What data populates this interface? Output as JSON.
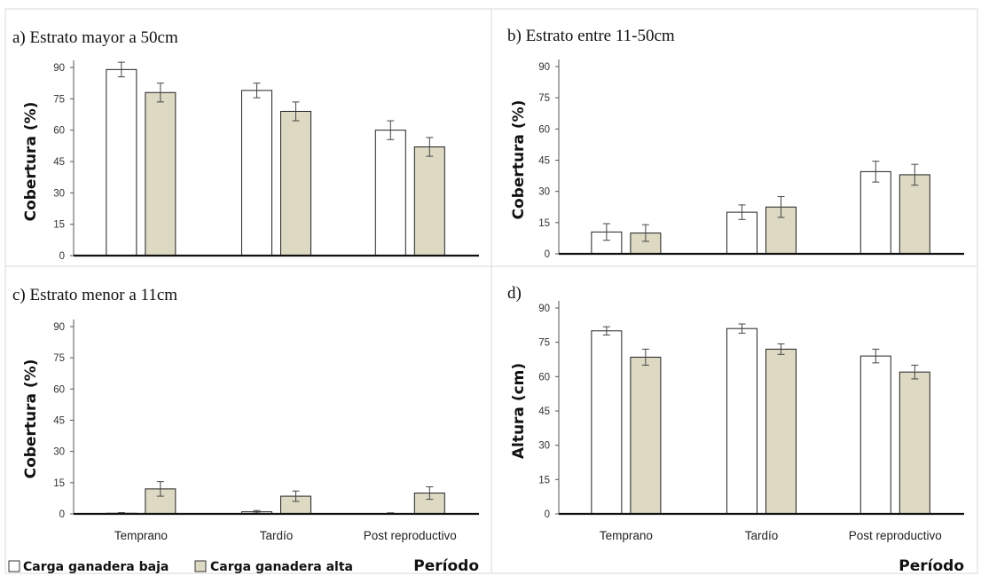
{
  "legend": {
    "items": [
      {
        "label": "Carga ganadera baja",
        "color": "#ffffff"
      },
      {
        "label": "Carga ganadera alta",
        "color": "#ddd9c3"
      }
    ]
  },
  "chart_data": [
    {
      "type": "bar",
      "title": "a) Estrato mayor a 50cm",
      "ylabel": "Cobertura (%)",
      "xlabel": "",
      "categories": [
        "",
        "",
        ""
      ],
      "ylim": [
        0,
        90
      ],
      "yticks": [
        "0",
        "15",
        "30",
        "45",
        "60",
        "75",
        "90"
      ],
      "series": [
        {
          "name": "Carga ganadera baja",
          "color": "#ffffff",
          "values": [
            89,
            79,
            60
          ],
          "errors": [
            3.5,
            3.5,
            4.5
          ]
        },
        {
          "name": "Carga ganadera alta",
          "color": "#ddd9c3",
          "values": [
            78,
            69,
            52
          ],
          "errors": [
            4.5,
            4.5,
            4.5
          ]
        }
      ]
    },
    {
      "type": "bar",
      "title": "b) Estrato entre 11-50cm",
      "ylabel": "Cobertura (%)",
      "xlabel": "",
      "categories": [
        "",
        "",
        ""
      ],
      "ylim": [
        0,
        90
      ],
      "yticks": [
        "0",
        "15",
        "30",
        "45",
        "60",
        "75",
        "90"
      ],
      "series": [
        {
          "name": "Carga ganadera baja",
          "color": "#ffffff",
          "values": [
            10.5,
            20,
            39.5
          ],
          "errors": [
            4,
            3.5,
            5
          ]
        },
        {
          "name": "Carga ganadera alta",
          "color": "#ddd9c3",
          "values": [
            10,
            22.5,
            38
          ],
          "errors": [
            4,
            5,
            5
          ]
        }
      ]
    },
    {
      "type": "bar",
      "title": "c) Estrato menor a 11cm",
      "ylabel": "Cobertura (%)",
      "xlabel": "Período",
      "categories": [
        "Temprano",
        "Tardío",
        "Post reproductivo"
      ],
      "ylim": [
        0,
        90
      ],
      "yticks": [
        "0",
        "15",
        "30",
        "45",
        "60",
        "75",
        "90"
      ],
      "series": [
        {
          "name": "Carga ganadera baja",
          "color": "#ffffff",
          "values": [
            0.3,
            1,
            0.2
          ],
          "errors": [
            0.3,
            0.6,
            0.3
          ]
        },
        {
          "name": "Carga ganadera alta",
          "color": "#ddd9c3",
          "values": [
            12,
            8.5,
            10
          ],
          "errors": [
            3.5,
            2.5,
            3
          ]
        }
      ]
    },
    {
      "type": "bar",
      "title": "d)",
      "ylabel": "Altura (cm)",
      "xlabel": "Período",
      "categories": [
        "Temprano",
        "Tardío",
        "Post reproductivo"
      ],
      "ylim": [
        0,
        90
      ],
      "yticks": [
        "0",
        "15",
        "30",
        "45",
        "60",
        "75",
        "90"
      ],
      "series": [
        {
          "name": "Carga ganadera baja",
          "color": "#ffffff",
          "values": [
            80,
            81,
            69
          ],
          "errors": [
            1.8,
            2,
            3
          ]
        },
        {
          "name": "Carga ganadera alta",
          "color": "#ddd9c3",
          "values": [
            68.5,
            72,
            62
          ],
          "errors": [
            3.5,
            2.3,
            3
          ]
        }
      ]
    }
  ]
}
